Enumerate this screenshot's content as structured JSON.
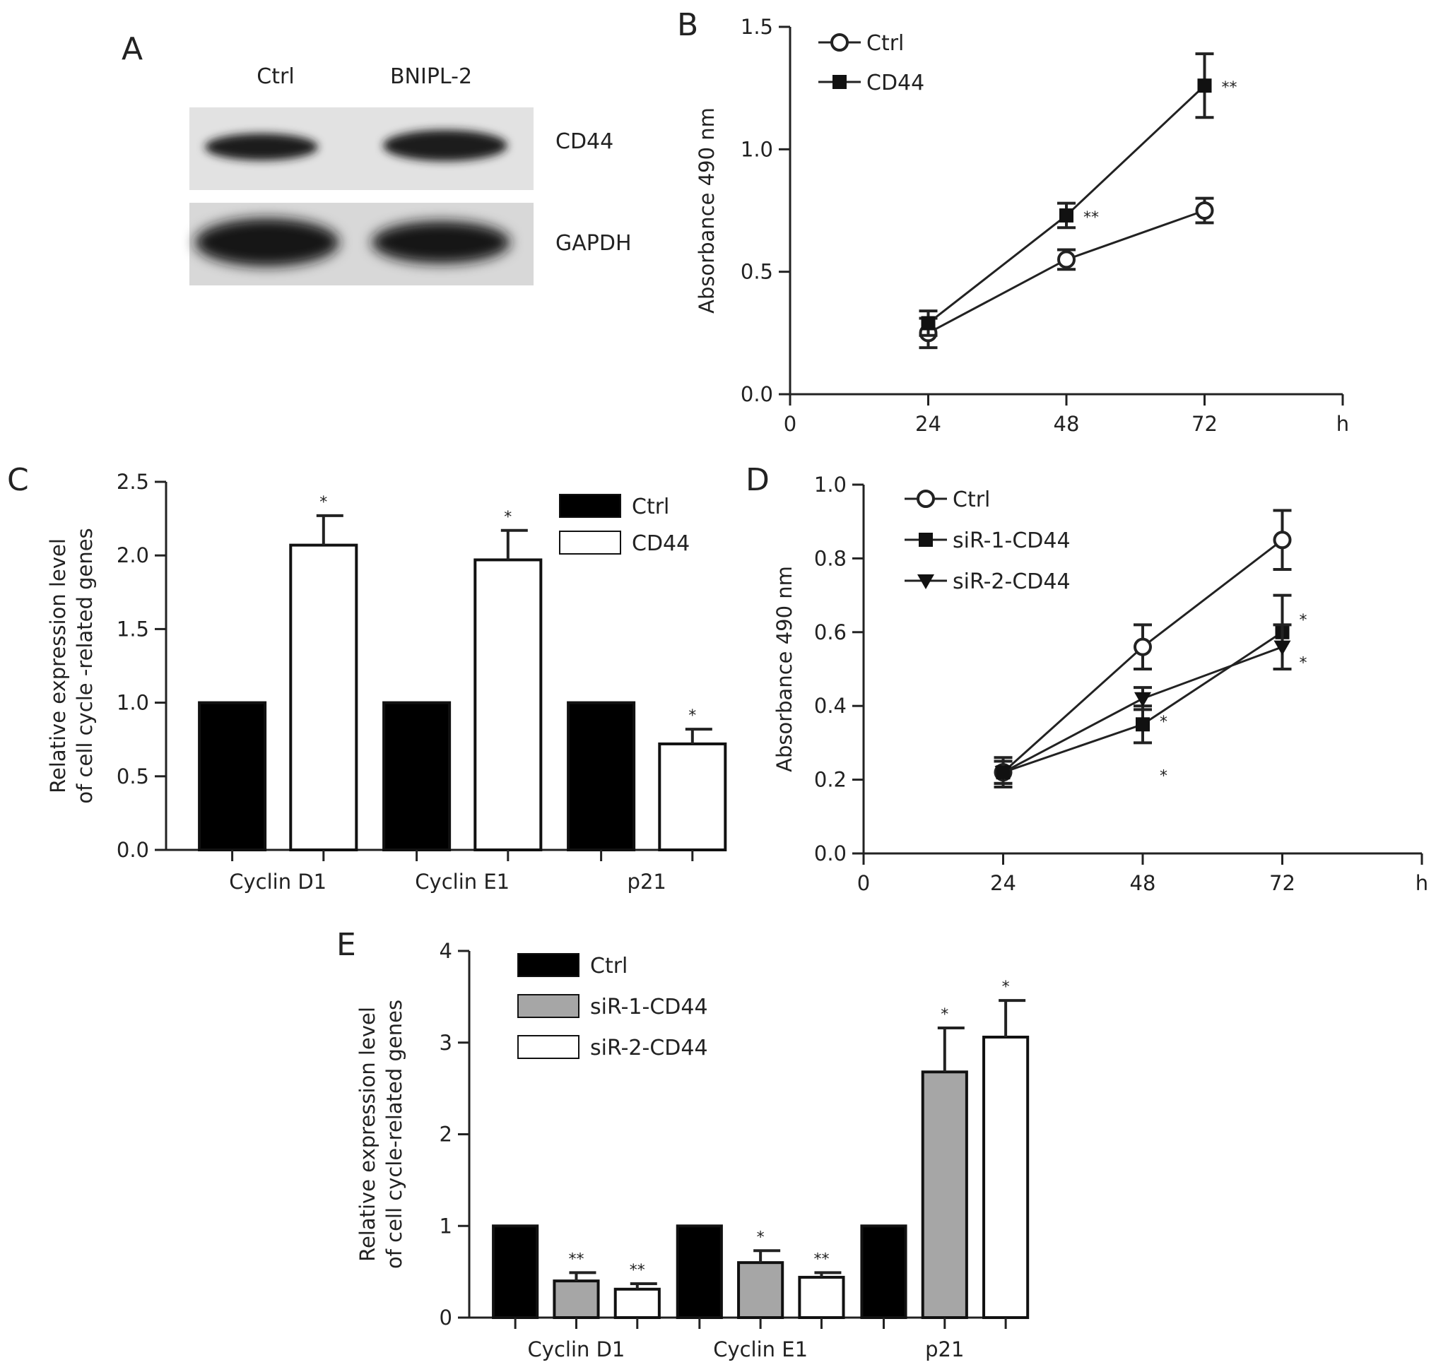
{
  "panels": {
    "a": "A",
    "b": "B",
    "c": "C",
    "d": "D",
    "e": "E"
  },
  "blot": {
    "lanes": [
      "Ctrl",
      "BNIPL-2"
    ],
    "rows": [
      "CD44",
      "GAPDH"
    ]
  },
  "chart_data": [
    {
      "panel": "B",
      "type": "line",
      "xlabel": "h",
      "ylabel": "Absorbance 490 nm",
      "x": [
        24,
        48,
        72
      ],
      "xticks": [
        "0",
        "24",
        "48",
        "72",
        "h"
      ],
      "ylim": [
        0,
        1.5
      ],
      "yticks": [
        "0.0",
        "0.5",
        "1.0",
        "1.5"
      ],
      "legend_position": "top-left",
      "series": [
        {
          "name": "Ctrl",
          "marker": "open-circle",
          "values": [
            0.25,
            0.55,
            0.75
          ],
          "errors": [
            0.06,
            0.04,
            0.05
          ],
          "annotations": [
            "",
            "",
            ""
          ]
        },
        {
          "name": "CD44",
          "marker": "filled-square",
          "values": [
            0.29,
            0.73,
            1.26
          ],
          "errors": [
            0.05,
            0.05,
            0.13
          ],
          "annotations": [
            "",
            "**",
            "**"
          ]
        }
      ]
    },
    {
      "panel": "C",
      "type": "bar",
      "ylabel": "Relative expression level of cell cycle-related genes",
      "ylabel_lines": [
        "Relative expression level",
        "of cell cycle -related genes"
      ],
      "categories": [
        "Cyclin D1",
        "Cyclin E1",
        "p21"
      ],
      "ylim": [
        0,
        2.5
      ],
      "yticks": [
        "0.0",
        "0.5",
        "1.0",
        "1.5",
        "2.0",
        "2.5"
      ],
      "legend_position": "top-right",
      "series": [
        {
          "name": "Ctrl",
          "color": "#000000",
          "values": [
            1.0,
            1.0,
            1.0
          ],
          "errors": [
            0,
            0,
            0
          ],
          "annotations": [
            "",
            "",
            ""
          ]
        },
        {
          "name": "CD44",
          "color": "#ffffff",
          "values": [
            2.07,
            1.97,
            0.72
          ],
          "errors": [
            0.2,
            0.2,
            0.1
          ],
          "annotations": [
            "*",
            "*",
            "*"
          ]
        }
      ]
    },
    {
      "panel": "D",
      "type": "line",
      "xlabel": "h",
      "ylabel": "Absorbance 490 nm",
      "x": [
        24,
        48,
        72
      ],
      "xticks": [
        "0",
        "24",
        "48",
        "72",
        "h"
      ],
      "ylim": [
        0,
        1.0
      ],
      "yticks": [
        "0.0",
        "0.2",
        "0.4",
        "0.6",
        "0.8",
        "1.0"
      ],
      "legend_position": "top-left",
      "series": [
        {
          "name": "Ctrl",
          "marker": "open-circle",
          "values": [
            0.22,
            0.56,
            0.85
          ],
          "errors": [
            0.03,
            0.06,
            0.08
          ],
          "annotations": [
            "",
            "",
            ""
          ]
        },
        {
          "name": "siR-1-CD44",
          "marker": "filled-square",
          "values": [
            0.22,
            0.35,
            0.6
          ],
          "errors": [
            0.04,
            0.05,
            0.1
          ],
          "annotations": [
            "",
            "*",
            "*"
          ]
        },
        {
          "name": "siR-2-CD44",
          "marker": "filled-triangle-down",
          "values": [
            0.22,
            0.42,
            0.56
          ],
          "errors": [
            0.03,
            0.03,
            0.06
          ],
          "annotations": [
            "",
            "*",
            "*"
          ]
        }
      ]
    },
    {
      "panel": "E",
      "type": "bar",
      "ylabel": "Relative expression level of cell cycle-related genes",
      "ylabel_lines": [
        "Relative expression level",
        "of cell cycle-related genes"
      ],
      "categories": [
        "Cyclin D1",
        "Cyclin E1",
        "p21"
      ],
      "ylim": [
        0,
        4
      ],
      "yticks": [
        "0",
        "1",
        "2",
        "3",
        "4"
      ],
      "legend_position": "top-left",
      "series": [
        {
          "name": "Ctrl",
          "color": "#000000",
          "values": [
            1.0,
            1.0,
            1.0
          ],
          "errors": [
            0,
            0,
            0
          ],
          "annotations": [
            "",
            "",
            ""
          ]
        },
        {
          "name": "siR-1-CD44",
          "color": "#a6a6a6",
          "values": [
            0.4,
            0.6,
            2.68
          ],
          "errors": [
            0.09,
            0.13,
            0.48
          ],
          "annotations": [
            "**",
            "*",
            "*"
          ]
        },
        {
          "name": "siR-2-CD44",
          "color": "#ffffff",
          "values": [
            0.31,
            0.44,
            3.06
          ],
          "errors": [
            0.06,
            0.05,
            0.4
          ],
          "annotations": [
            "**",
            "**",
            "*"
          ]
        }
      ]
    }
  ]
}
